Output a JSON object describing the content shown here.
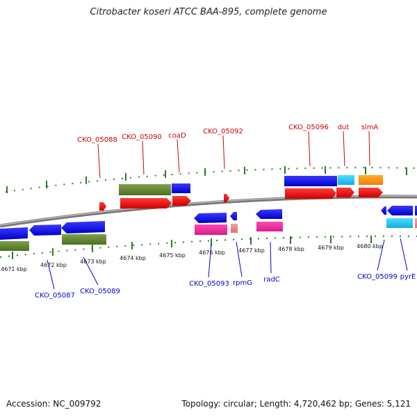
{
  "title": "Citrobacter koseri ATCC BAA-895, complete genome",
  "footer": {
    "accession": "Accession: NC_009792",
    "topology": "Topology: circular; Length: 4,720,462 bp; Genes: 5,121"
  },
  "colors": {
    "forward_label": "#cc0000",
    "reverse_label": "#0000cc",
    "ticks": "#2a7a2a",
    "backbone": "#8a8a8a"
  },
  "kbp_ticks": [
    {
      "label": "4671 kbp"
    },
    {
      "label": "4672 kbp"
    },
    {
      "label": "4673 kbp"
    },
    {
      "label": "4674 kbp"
    },
    {
      "label": "4675 kbp"
    },
    {
      "label": "4676 kbp"
    },
    {
      "label": "4677 kbp"
    },
    {
      "label": "4678 kbp"
    },
    {
      "label": "4679 kbp"
    },
    {
      "label": "4680 kbp"
    }
  ],
  "forward_labels": [
    "CKO_05088",
    "CKO_05090",
    "coaD",
    "CKO_05092",
    "CKO_05096",
    "dut",
    "slmA"
  ],
  "reverse_labels": [
    "CKO_05087",
    "CKO_05089",
    "CKO_05093",
    "rpmG",
    "radC",
    "CKO_05099",
    "pyrE"
  ]
}
